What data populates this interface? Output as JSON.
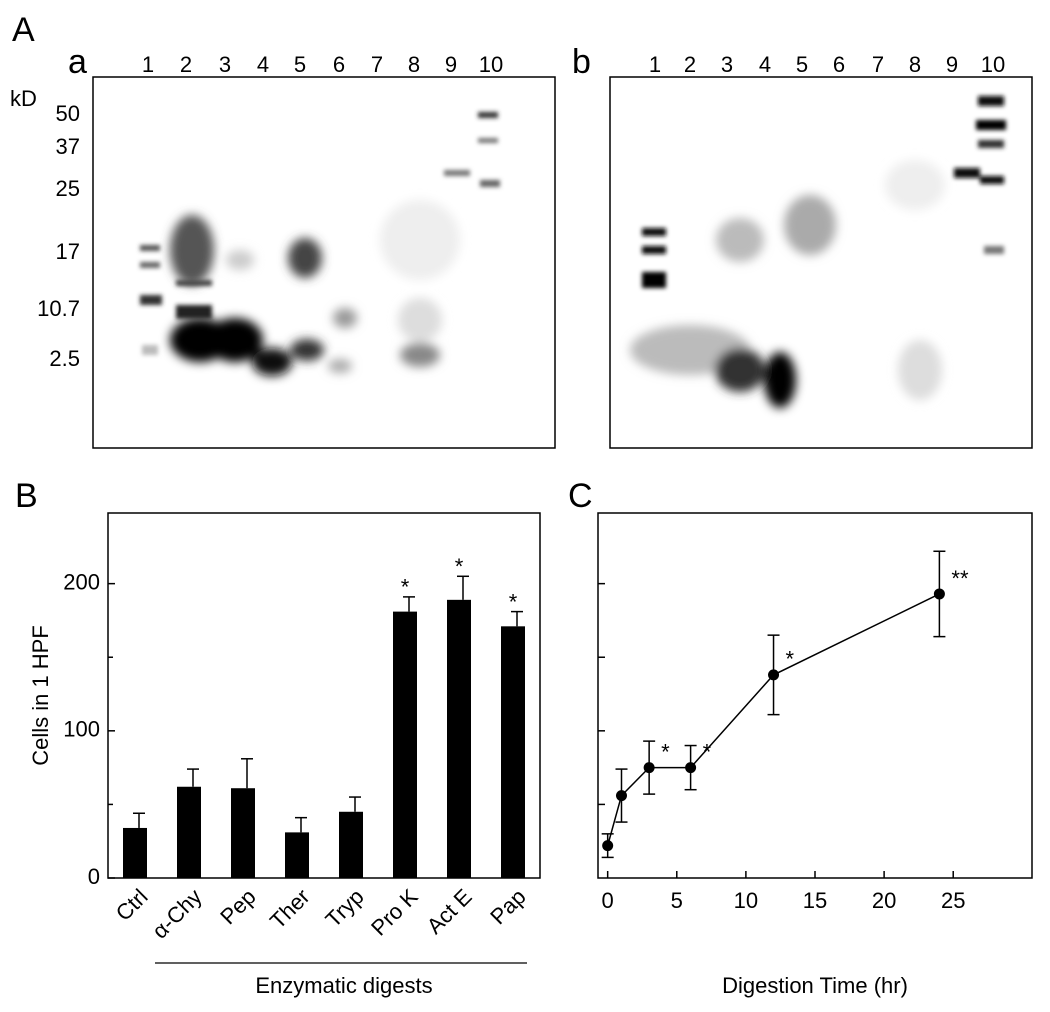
{
  "figure_label": "A",
  "kd_unit": "kD",
  "kd_markers": [
    "50",
    "37",
    "25",
    "17",
    "10.7",
    "2.5"
  ],
  "gels": [
    {
      "label": "a",
      "lanes": [
        "1",
        "2",
        "3",
        "4",
        "5",
        "6",
        "7",
        "8",
        "9",
        "10"
      ]
    },
    {
      "label": "b",
      "lanes": [
        "1",
        "2",
        "3",
        "4",
        "5",
        "6",
        "7",
        "8",
        "9",
        "10"
      ]
    }
  ],
  "chart_data": [
    {
      "type": "bar",
      "panel_label": "B",
      "ylabel": "Cells in 1 HPF",
      "xlabel": "Enzymatic digests",
      "categories": [
        "Ctrl",
        "α-Chy",
        "Pep",
        "Ther",
        "Tryp",
        "Pro K",
        "Act E",
        "Pap"
      ],
      "values": [
        34,
        62,
        61,
        31,
        45,
        181,
        189,
        171
      ],
      "errors": [
        10,
        12,
        20,
        10,
        10,
        10,
        16,
        10
      ],
      "annotations": [
        null,
        null,
        null,
        null,
        null,
        "*",
        "*",
        "*"
      ],
      "color": "#000000",
      "ylim": [
        0,
        248
      ],
      "yticks": [
        0,
        100,
        200
      ],
      "minor_yticks": [
        50,
        150
      ]
    },
    {
      "type": "line",
      "panel_label": "C",
      "xlabel": "Digestion Time (hr)",
      "x": [
        0,
        1,
        3,
        6,
        12,
        24
      ],
      "values": [
        22,
        56,
        75,
        75,
        138,
        193
      ],
      "errors": [
        8,
        18,
        18,
        15,
        27,
        29
      ],
      "annotations": [
        null,
        null,
        "*",
        "*",
        "*",
        "**"
      ],
      "color": "#000000",
      "xlim": [
        -0.7,
        30.7
      ],
      "xticks": [
        0,
        5,
        10,
        15,
        20,
        25
      ],
      "ylim": [
        0,
        248
      ],
      "yticks": [
        50,
        100,
        150,
        200
      ],
      "ytick_labels": false
    }
  ]
}
